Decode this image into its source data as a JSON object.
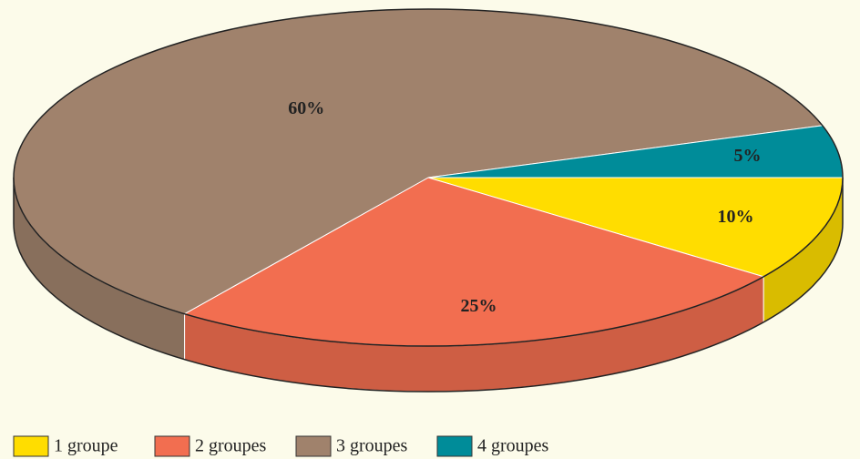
{
  "chart_data": {
    "type": "pie",
    "categories": [
      "1 groupe",
      "2 groupes",
      "3 groupes",
      "4 groupes"
    ],
    "values": [
      10,
      25,
      60,
      5
    ],
    "value_labels": [
      "10%",
      "25%",
      "60%",
      "5%"
    ],
    "colors": [
      "#ffdd00",
      "#f26e50",
      "#a0826c",
      "#008c99"
    ]
  }
}
